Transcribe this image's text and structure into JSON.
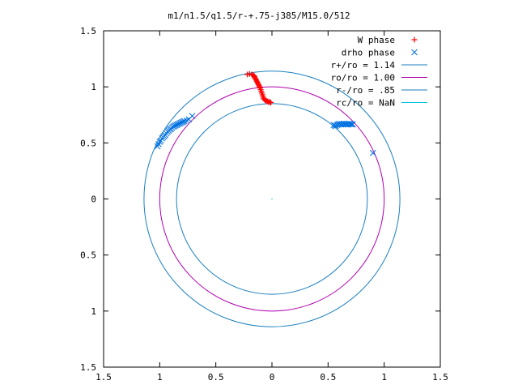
{
  "chart_data": {
    "type": "scatter",
    "title": "m1/n1.5/q1.5/r-+.75-j385/M15.0/512",
    "xlabel": "",
    "ylabel": "",
    "xlim": [
      -1.5,
      1.5
    ],
    "ylim": [
      -1.5,
      1.5
    ],
    "x_ticks": [
      -1.5,
      -1,
      -0.5,
      0,
      0.5,
      1,
      1.5
    ],
    "y_ticks": [
      -1.5,
      -1,
      -0.5,
      0,
      0.5,
      1,
      1.5
    ],
    "x_tick_labels": [
      "1.5",
      "1",
      "0.5",
      "0",
      "0.5",
      "1",
      "1.5"
    ],
    "y_tick_labels": [
      "1.5",
      "1",
      "0.5",
      "0",
      "0.5",
      "1",
      "1.5"
    ],
    "grid": false,
    "legend_position": "top-right",
    "series": [
      {
        "name": "W phase",
        "kind": "points",
        "marker": "plus",
        "color": "#ff0000",
        "points": [
          [
            -0.22,
            1.11
          ],
          [
            -0.2,
            1.115
          ],
          [
            -0.18,
            1.11
          ],
          [
            -0.17,
            1.105
          ],
          [
            -0.16,
            1.1
          ],
          [
            -0.155,
            1.09
          ],
          [
            -0.15,
            1.08
          ],
          [
            -0.145,
            1.07
          ],
          [
            -0.14,
            1.06
          ],
          [
            -0.135,
            1.05
          ],
          [
            -0.13,
            1.04
          ],
          [
            -0.125,
            1.03
          ],
          [
            -0.12,
            1.02
          ],
          [
            -0.115,
            1.01
          ],
          [
            -0.11,
            1.0
          ],
          [
            -0.105,
            0.99
          ],
          [
            -0.1,
            0.975
          ],
          [
            -0.095,
            0.96
          ],
          [
            -0.09,
            0.945
          ],
          [
            -0.085,
            0.93
          ],
          [
            -0.08,
            0.915
          ],
          [
            -0.075,
            0.9
          ],
          [
            -0.07,
            0.89
          ],
          [
            -0.06,
            0.88
          ],
          [
            -0.05,
            0.875
          ],
          [
            -0.04,
            0.87
          ],
          [
            -0.03,
            0.865
          ],
          [
            -0.02,
            0.865
          ],
          [
            -0.01,
            0.86
          ]
        ]
      },
      {
        "name": "drho phase",
        "kind": "points",
        "marker": "cross",
        "color": "#0070e0",
        "points": [
          [
            0.55,
            0.66
          ],
          [
            0.56,
            0.655
          ],
          [
            0.57,
            0.65
          ],
          [
            0.58,
            0.66
          ],
          [
            0.59,
            0.665
          ],
          [
            0.6,
            0.67
          ],
          [
            0.61,
            0.665
          ],
          [
            0.62,
            0.67
          ],
          [
            0.63,
            0.665
          ],
          [
            0.64,
            0.67
          ],
          [
            0.65,
            0.668
          ],
          [
            0.66,
            0.665
          ],
          [
            0.67,
            0.67
          ],
          [
            0.68,
            0.665
          ],
          [
            0.69,
            0.67
          ],
          [
            0.7,
            0.668
          ],
          [
            0.71,
            0.666
          ],
          [
            0.72,
            0.665
          ],
          [
            0.9,
            0.41
          ],
          [
            -1.02,
            0.47
          ],
          [
            -1.01,
            0.49
          ],
          [
            -1.0,
            0.51
          ],
          [
            -0.99,
            0.52
          ],
          [
            -0.98,
            0.54
          ],
          [
            -0.97,
            0.55
          ],
          [
            -0.96,
            0.56
          ],
          [
            -0.95,
            0.57
          ],
          [
            -0.94,
            0.585
          ],
          [
            -0.93,
            0.6
          ],
          [
            -0.92,
            0.61
          ],
          [
            -0.91,
            0.62
          ],
          [
            -0.9,
            0.625
          ],
          [
            -0.89,
            0.635
          ],
          [
            -0.88,
            0.645
          ],
          [
            -0.87,
            0.65
          ],
          [
            -0.86,
            0.655
          ],
          [
            -0.85,
            0.66
          ],
          [
            -0.84,
            0.665
          ],
          [
            -0.83,
            0.67
          ],
          [
            -0.82,
            0.675
          ],
          [
            -0.81,
            0.68
          ],
          [
            -0.8,
            0.685
          ],
          [
            -0.79,
            0.69
          ],
          [
            -0.78,
            0.695
          ],
          [
            -0.76,
            0.7
          ],
          [
            -0.74,
            0.71
          ],
          [
            -0.71,
            0.74
          ]
        ]
      },
      {
        "name": "r+/ro = 1.14",
        "kind": "circle",
        "radius": 1.14,
        "color": "#1a7fbf"
      },
      {
        "name": "ro/ro = 1.00",
        "kind": "circle",
        "radius": 1.0,
        "color": "#b000b0"
      },
      {
        "name": "r-/ro = .85",
        "kind": "circle",
        "radius": 0.85,
        "color": "#1a7fbf"
      },
      {
        "name": "rc/ro = NaN",
        "kind": "circle",
        "radius": null,
        "color": "#00c0e0"
      }
    ]
  }
}
